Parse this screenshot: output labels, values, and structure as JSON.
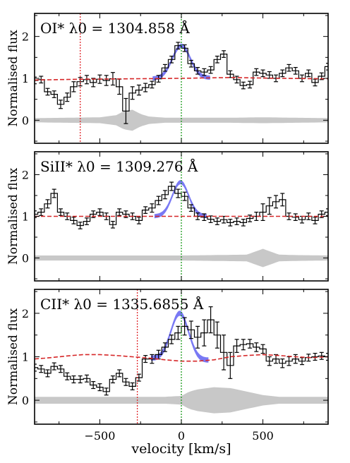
{
  "figure": {
    "xlabel": "velocity [km/s]",
    "ylabel": "Normalised flux",
    "x_ticks": [
      "−500",
      "0",
      "500"
    ]
  },
  "chart_data": [
    {
      "type": "line",
      "title": "OI* λ0 = 1304.858 Å",
      "xlabel": "velocity [km/s]",
      "ylabel": "Normalised flux",
      "xlim": [
        -900,
        900
      ],
      "ylim": [
        -0.55,
        2.55
      ],
      "yticks": [
        0,
        1,
        2
      ],
      "colors": {
        "flux": "#000000",
        "continuum": "#d62728",
        "fit": "#4c4cf0",
        "error": "#c8c8c8",
        "dotted_red": "#e0262a",
        "dotted_green": "#1a9a1a"
      },
      "flux": {
        "x": [
          -900,
          -860,
          -820,
          -780,
          -740,
          -700,
          -660,
          -620,
          -580,
          -540,
          -500,
          -460,
          -420,
          -380,
          -340,
          -300,
          -260,
          -220,
          -180,
          -140,
          -100,
          -60,
          -20,
          20,
          60,
          100,
          140,
          180,
          220,
          260,
          300,
          340,
          380,
          420,
          460,
          500,
          540,
          580,
          620,
          660,
          700,
          740,
          780,
          820,
          860,
          900
        ],
        "y": [
          0.95,
          0.97,
          0.68,
          0.62,
          0.38,
          0.55,
          0.8,
          0.92,
          0.97,
          0.9,
          0.98,
          0.95,
          0.99,
          0.8,
          0.22,
          0.65,
          0.72,
          0.78,
          0.85,
          0.99,
          1.25,
          1.45,
          1.78,
          1.72,
          1.35,
          1.18,
          1.15,
          1.2,
          1.45,
          1.58,
          1.1,
          0.97,
          0.83,
          0.85,
          1.15,
          1.12,
          1.08,
          1.0,
          1.12,
          1.25,
          1.18,
          1.0,
          1.12,
          0.9,
          1.05,
          1.28
        ],
        "err": [
          0.08,
          0.08,
          0.08,
          0.08,
          0.1,
          0.1,
          0.12,
          0.1,
          0.1,
          0.1,
          0.1,
          0.12,
          0.15,
          0.18,
          0.3,
          0.15,
          0.12,
          0.1,
          0.08,
          0.08,
          0.08,
          0.08,
          0.08,
          0.08,
          0.08,
          0.08,
          0.08,
          0.08,
          0.08,
          0.08,
          0.08,
          0.08,
          0.08,
          0.08,
          0.08,
          0.08,
          0.08,
          0.08,
          0.08,
          0.08,
          0.08,
          0.08,
          0.08,
          0.08,
          0.08,
          0.08
        ]
      },
      "continuum": {
        "x": [
          -900,
          -600,
          -300,
          0,
          300,
          600,
          900
        ],
        "y": [
          0.96,
          0.98,
          0.99,
          1.0,
          1.02,
          1.0,
          0.99
        ]
      },
      "fit": {
        "center": 0,
        "peak": 1.78,
        "sigma": 55,
        "width": 0.1
      },
      "error_band": {
        "x": [
          -900,
          -700,
          -500,
          -400,
          -350,
          -300,
          -250,
          -200,
          -100,
          0,
          100,
          300,
          500,
          700,
          900
        ],
        "half": [
          0.05,
          0.06,
          0.07,
          0.12,
          0.22,
          0.25,
          0.15,
          0.09,
          0.06,
          0.06,
          0.06,
          0.06,
          0.07,
          0.06,
          0.05
        ]
      },
      "markers": [
        {
          "x": -620,
          "style": "dotted_red"
        },
        {
          "x": 0,
          "style": "dotted_green"
        }
      ]
    },
    {
      "type": "line",
      "title": "SiII* λ0 = 1309.276 Å",
      "xlabel": "velocity [km/s]",
      "ylabel": "Normalised flux",
      "xlim": [
        -900,
        900
      ],
      "ylim": [
        -0.55,
        2.55
      ],
      "yticks": [
        0,
        1,
        2
      ],
      "colors": {
        "flux": "#000000",
        "continuum": "#d62728",
        "fit": "#4c4cf0",
        "error": "#c8c8c8",
        "dotted_red": "#e0262a",
        "dotted_green": "#1a9a1a"
      },
      "flux": {
        "x": [
          -900,
          -860,
          -820,
          -780,
          -740,
          -700,
          -660,
          -620,
          -580,
          -540,
          -500,
          -460,
          -420,
          -380,
          -340,
          -300,
          -260,
          -220,
          -180,
          -140,
          -100,
          -60,
          -20,
          20,
          60,
          100,
          140,
          180,
          220,
          260,
          300,
          340,
          380,
          420,
          460,
          500,
          540,
          580,
          620,
          660,
          700,
          740,
          780,
          820,
          860,
          900
        ],
        "y": [
          1.05,
          1.1,
          1.3,
          1.55,
          1.1,
          1.0,
          0.9,
          0.78,
          0.88,
          1.05,
          1.1,
          1.0,
          0.8,
          1.1,
          1.05,
          1.0,
          0.9,
          1.15,
          1.2,
          1.38,
          1.52,
          1.72,
          1.55,
          1.48,
          1.2,
          1.0,
          0.98,
          0.93,
          0.88,
          0.92,
          0.85,
          0.88,
          0.85,
          0.95,
          1.0,
          1.1,
          1.25,
          1.35,
          1.4,
          1.0,
          0.98,
          0.92,
          1.0,
          0.9,
          1.05,
          1.1
        ],
        "err": [
          0.08,
          0.08,
          0.1,
          0.1,
          0.08,
          0.08,
          0.08,
          0.08,
          0.08,
          0.08,
          0.08,
          0.08,
          0.08,
          0.08,
          0.08,
          0.08,
          0.08,
          0.08,
          0.1,
          0.1,
          0.1,
          0.1,
          0.1,
          0.1,
          0.08,
          0.08,
          0.08,
          0.08,
          0.08,
          0.08,
          0.08,
          0.08,
          0.08,
          0.08,
          0.1,
          0.2,
          0.2,
          0.15,
          0.15,
          0.08,
          0.08,
          0.08,
          0.08,
          0.08,
          0.08,
          0.08
        ]
      },
      "continuum": {
        "x": [
          -900,
          900
        ],
        "y": [
          1.0,
          1.0
        ]
      },
      "fit": {
        "center": -5,
        "peak": 1.82,
        "sigma": 50,
        "width": 0.1
      },
      "error_band": {
        "x": [
          -900,
          -500,
          0,
          400,
          450,
          500,
          550,
          600,
          700,
          900
        ],
        "half": [
          0.06,
          0.06,
          0.06,
          0.08,
          0.15,
          0.22,
          0.15,
          0.08,
          0.07,
          0.06
        ]
      },
      "markers": [
        {
          "x": 0,
          "style": "dotted_green"
        }
      ]
    },
    {
      "type": "line",
      "title": "CII* λ0 = 1335.6855 Å",
      "xlabel": "velocity [km/s]",
      "ylabel": "Normalised flux",
      "xlim": [
        -900,
        900
      ],
      "ylim": [
        -0.55,
        2.55
      ],
      "yticks": [
        0,
        1,
        2
      ],
      "xticks": [
        -500,
        0,
        500
      ],
      "colors": {
        "flux": "#000000",
        "continuum": "#d62728",
        "fit": "#4c4cf0",
        "error": "#c8c8c8",
        "dotted_red": "#e0262a",
        "dotted_green": "#1a9a1a"
      },
      "flux": {
        "x": [
          -900,
          -860,
          -820,
          -780,
          -740,
          -700,
          -660,
          -620,
          -580,
          -540,
          -500,
          -460,
          -420,
          -380,
          -340,
          -300,
          -260,
          -220,
          -180,
          -140,
          -100,
          -60,
          -20,
          20,
          60,
          100,
          140,
          180,
          220,
          260,
          300,
          340,
          380,
          420,
          460,
          500,
          540,
          580,
          620,
          660,
          700,
          740,
          780,
          820,
          860,
          900
        ],
        "y": [
          0.75,
          0.72,
          0.62,
          0.78,
          0.72,
          0.55,
          0.48,
          0.48,
          0.5,
          0.35,
          0.3,
          0.2,
          0.48,
          0.62,
          0.42,
          0.32,
          0.52,
          0.95,
          0.95,
          1.05,
          1.22,
          1.4,
          1.55,
          1.7,
          1.62,
          1.45,
          1.55,
          1.85,
          1.5,
          1.1,
          0.8,
          1.25,
          1.28,
          1.3,
          1.22,
          1.18,
          0.9,
          0.95,
          0.85,
          0.9,
          0.95,
          0.9,
          0.98,
          1.0,
          1.02,
          1.0
        ],
        "err": [
          0.08,
          0.08,
          0.08,
          0.08,
          0.08,
          0.08,
          0.08,
          0.08,
          0.08,
          0.08,
          0.08,
          0.08,
          0.08,
          0.08,
          0.08,
          0.08,
          0.08,
          0.08,
          0.1,
          0.1,
          0.1,
          0.1,
          0.15,
          0.2,
          0.2,
          0.25,
          0.3,
          0.3,
          0.3,
          0.4,
          0.3,
          0.15,
          0.12,
          0.1,
          0.1,
          0.1,
          0.1,
          0.1,
          0.1,
          0.1,
          0.1,
          0.08,
          0.08,
          0.08,
          0.08,
          0.08
        ]
      },
      "continuum": {
        "x": [
          -900,
          -800,
          -700,
          -600,
          -500,
          -400,
          -300,
          -200,
          -100,
          0,
          100,
          200,
          300,
          400,
          500,
          600,
          700,
          800,
          900
        ],
        "y": [
          0.95,
          0.98,
          1.02,
          1.05,
          1.05,
          1.03,
          1.0,
          0.97,
          0.93,
          0.9,
          0.9,
          0.93,
          1.0,
          1.03,
          1.05,
          1.03,
          1.0,
          0.98,
          1.0
        ]
      },
      "fit": {
        "center": -10,
        "peak": 2.0,
        "sigma": 55,
        "width": 0.12
      },
      "error_band": {
        "x": [
          -900,
          -600,
          -300,
          -100,
          0,
          50,
          100,
          200,
          300,
          400,
          500,
          600,
          900
        ],
        "half": [
          0.08,
          0.08,
          0.08,
          0.08,
          0.1,
          0.2,
          0.25,
          0.3,
          0.28,
          0.2,
          0.12,
          0.08,
          0.08
        ]
      },
      "markers": [
        {
          "x": -270,
          "style": "dotted_red"
        },
        {
          "x": 0,
          "style": "dotted_green"
        }
      ]
    }
  ]
}
